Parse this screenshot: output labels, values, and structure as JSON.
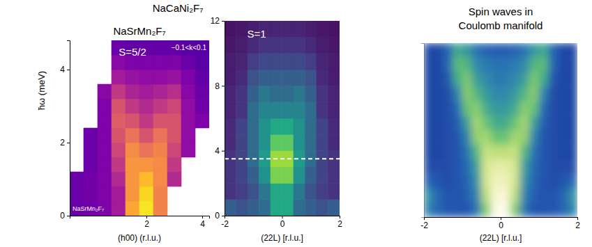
{
  "chart_data": [
    {
      "type": "heatmap",
      "title": "NaSrMn₂F₇",
      "xlabel": "(h00) (r.l.u.)",
      "ylabel": "ħω (meV)",
      "annotations": [
        "S=5/2",
        "−0.1<k<0.1",
        "NaSrMn₂F₇"
      ],
      "color": "plasma",
      "zlim": [
        0,
        1
      ],
      "xlim": [
        -0.75,
        4.25
      ],
      "ylim": [
        0,
        4.8
      ],
      "xticks": [
        2,
        4
      ],
      "yticks": [
        0,
        2,
        4
      ],
      "xbins": [
        -0.75,
        -0.25,
        0.25,
        0.75,
        1.25,
        1.75,
        2.25,
        2.75,
        3.25,
        3.75,
        4.25
      ],
      "ybins": [
        0,
        0.4,
        0.8,
        1.2,
        1.6,
        2,
        2.4,
        2.8,
        3.2,
        3.6,
        4,
        4.4,
        4.8
      ],
      "z": [
        [
          0.2,
          0.22,
          0.25,
          0.35,
          0.8,
          0.95,
          0.7,
          null,
          null,
          null
        ],
        [
          0.2,
          0.22,
          0.25,
          0.35,
          0.75,
          0.92,
          0.7,
          null,
          null,
          null
        ],
        [
          0.2,
          0.22,
          0.25,
          0.4,
          0.75,
          0.85,
          0.72,
          0.4,
          null,
          null
        ],
        [
          null,
          0.2,
          0.25,
          0.45,
          0.75,
          0.75,
          0.72,
          0.45,
          null,
          null
        ],
        [
          null,
          0.2,
          0.25,
          0.5,
          0.72,
          0.65,
          0.7,
          0.5,
          0.3,
          null
        ],
        [
          null,
          0.2,
          0.25,
          0.55,
          0.65,
          0.55,
          0.65,
          0.55,
          0.3,
          null
        ],
        [
          null,
          null,
          0.25,
          0.58,
          0.55,
          0.45,
          0.55,
          0.55,
          0.3,
          0.25
        ],
        [
          null,
          null,
          0.25,
          0.55,
          0.45,
          0.4,
          0.45,
          0.5,
          0.3,
          0.22
        ],
        [
          null,
          null,
          0.28,
          0.45,
          0.38,
          0.35,
          0.38,
          0.42,
          0.28,
          0.2
        ],
        [
          null,
          null,
          null,
          0.35,
          0.32,
          0.3,
          0.3,
          0.32,
          0.25,
          0.18
        ],
        [
          null,
          null,
          null,
          0.28,
          0.25,
          0.25,
          0.25,
          0.25,
          0.2,
          0.16
        ],
        [
          null,
          null,
          null,
          0.2,
          0.18,
          0.18,
          0.18,
          0.18,
          0.16,
          0.15
        ]
      ]
    },
    {
      "type": "heatmap",
      "title": "NaCaNi₂F₇",
      "xlabel": "(22L) [r.l.u.]",
      "annotations": [
        "S=1"
      ],
      "hlines": [
        {
          "y": 3.5,
          "line_style": "dashed",
          "color": "#ffffff"
        }
      ],
      "color": "viridis",
      "zlim": [
        0,
        1
      ],
      "xlim": [
        -2,
        2
      ],
      "ylim": [
        0,
        12
      ],
      "xticks": [
        -2,
        0,
        2
      ],
      "yticks": [
        0,
        4,
        8,
        12
      ],
      "xbins": [
        -2,
        -1.6,
        -1.2,
        -0.8,
        -0.4,
        0,
        0.4,
        0.8,
        1.2,
        1.6,
        2
      ],
      "ybins": [
        0,
        1,
        2,
        3,
        4,
        5,
        6,
        7,
        8,
        9,
        10,
        11,
        12
      ],
      "z": [
        [
          0.3,
          0.25,
          0.3,
          0.35,
          0.6,
          0.6,
          0.35,
          0.3,
          0.25,
          0.3
        ],
        [
          0.15,
          0.18,
          0.25,
          0.4,
          0.6,
          0.6,
          0.4,
          0.25,
          0.18,
          0.15
        ],
        [
          0.15,
          0.2,
          0.3,
          0.5,
          0.8,
          0.8,
          0.5,
          0.3,
          0.2,
          0.15
        ],
        [
          0.15,
          0.2,
          0.35,
          0.55,
          0.85,
          0.85,
          0.55,
          0.35,
          0.2,
          0.15
        ],
        [
          0.12,
          0.2,
          0.35,
          0.5,
          0.75,
          0.75,
          0.5,
          0.35,
          0.2,
          0.12
        ],
        [
          0.12,
          0.2,
          0.35,
          0.5,
          0.6,
          0.6,
          0.5,
          0.35,
          0.2,
          0.12
        ],
        [
          0.1,
          0.15,
          0.35,
          0.45,
          0.45,
          0.45,
          0.45,
          0.35,
          0.15,
          0.1
        ],
        [
          0.1,
          0.15,
          0.3,
          0.4,
          0.35,
          0.35,
          0.4,
          0.3,
          0.15,
          0.1
        ],
        [
          0.08,
          0.12,
          0.25,
          0.3,
          0.3,
          0.3,
          0.3,
          0.25,
          0.12,
          0.08
        ],
        [
          0.08,
          0.1,
          0.18,
          0.22,
          0.22,
          0.22,
          0.22,
          0.18,
          0.1,
          0.08
        ],
        [
          0.06,
          0.08,
          0.12,
          0.15,
          0.15,
          0.15,
          0.15,
          0.12,
          0.08,
          0.06
        ],
        [
          0.05,
          0.06,
          0.08,
          0.1,
          0.1,
          0.1,
          0.1,
          0.08,
          0.06,
          0.05
        ]
      ]
    },
    {
      "type": "heatmap",
      "title": "Spin waves in Coulomb manifold",
      "xlabel": "(22L) [r.l.u.]",
      "color": "blue-green",
      "zlim": [
        0,
        1
      ],
      "tick_labels": "x",
      "xlim": [
        -2,
        2
      ],
      "ylim": [
        0,
        12
      ],
      "xticks": [
        -2,
        0,
        2
      ],
      "xbins": [
        -2,
        -1.75,
        -1.5,
        -1.25,
        -1,
        -0.75,
        -0.5,
        -0.25,
        0,
        0.25,
        0.5,
        0.75,
        1,
        1.25,
        1.5,
        1.75,
        2
      ],
      "ybins": [
        0,
        1,
        2,
        3,
        4,
        5,
        6,
        7,
        8,
        9,
        10,
        11,
        12
      ],
      "z": [
        [
          0.3,
          0.2,
          0.15,
          0.15,
          0.15,
          0.25,
          0.6,
          0.95,
          0.95,
          0.6,
          0.25,
          0.15,
          0.15,
          0.15,
          0.2,
          0.3
        ],
        [
          0.35,
          0.2,
          0.15,
          0.15,
          0.18,
          0.3,
          0.7,
          0.9,
          0.9,
          0.7,
          0.3,
          0.18,
          0.15,
          0.15,
          0.2,
          0.35
        ],
        [
          0.2,
          0.15,
          0.12,
          0.15,
          0.2,
          0.35,
          0.75,
          0.85,
          0.85,
          0.75,
          0.35,
          0.2,
          0.15,
          0.12,
          0.15,
          0.2
        ],
        [
          0.12,
          0.12,
          0.12,
          0.15,
          0.22,
          0.4,
          0.75,
          0.8,
          0.8,
          0.75,
          0.4,
          0.22,
          0.15,
          0.12,
          0.12,
          0.12
        ],
        [
          0.1,
          0.1,
          0.12,
          0.15,
          0.25,
          0.5,
          0.72,
          0.7,
          0.7,
          0.72,
          0.5,
          0.25,
          0.15,
          0.12,
          0.1,
          0.1
        ],
        [
          0.1,
          0.1,
          0.12,
          0.15,
          0.3,
          0.62,
          0.65,
          0.55,
          0.55,
          0.65,
          0.62,
          0.3,
          0.15,
          0.12,
          0.1,
          0.1
        ],
        [
          0.1,
          0.1,
          0.12,
          0.18,
          0.4,
          0.65,
          0.55,
          0.45,
          0.45,
          0.55,
          0.65,
          0.4,
          0.18,
          0.12,
          0.1,
          0.1
        ],
        [
          0.1,
          0.1,
          0.12,
          0.22,
          0.55,
          0.6,
          0.45,
          0.38,
          0.38,
          0.45,
          0.6,
          0.55,
          0.22,
          0.12,
          0.1,
          0.1
        ],
        [
          0.1,
          0.1,
          0.12,
          0.3,
          0.6,
          0.5,
          0.38,
          0.32,
          0.32,
          0.38,
          0.5,
          0.6,
          0.3,
          0.12,
          0.1,
          0.1
        ],
        [
          0.1,
          0.1,
          0.15,
          0.45,
          0.58,
          0.4,
          0.32,
          0.28,
          0.28,
          0.32,
          0.4,
          0.58,
          0.45,
          0.15,
          0.1,
          0.1
        ],
        [
          0.1,
          0.1,
          0.2,
          0.52,
          0.5,
          0.32,
          0.28,
          0.25,
          0.25,
          0.28,
          0.32,
          0.5,
          0.52,
          0.2,
          0.1,
          0.1
        ],
        [
          0.1,
          0.1,
          0.2,
          0.45,
          0.38,
          0.25,
          0.2,
          0.18,
          0.18,
          0.2,
          0.25,
          0.38,
          0.45,
          0.2,
          0.1,
          0.1
        ]
      ]
    }
  ]
}
